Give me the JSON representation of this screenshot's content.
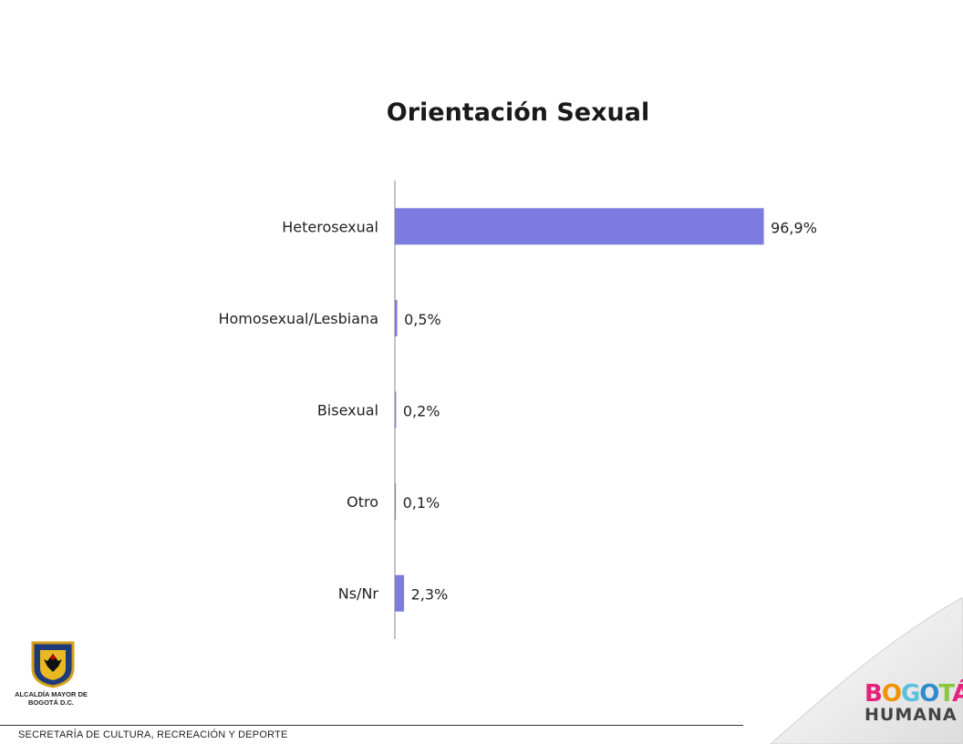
{
  "chart_data": {
    "type": "bar",
    "orientation": "horizontal",
    "title": "Orientación Sexual",
    "categories": [
      "Heterosexual",
      "Homosexual/Lesbiana",
      "Bisexual",
      "Otro",
      "Ns/Nr"
    ],
    "values": [
      96.9,
      0.5,
      0.2,
      0.1,
      2.3
    ],
    "value_labels": [
      "96,9%",
      "0,5%",
      "0,2%",
      "0,1%",
      "2,3%"
    ],
    "xlim": [
      0,
      100
    ],
    "grid": false,
    "legend": "none",
    "bar_color": "#7b7be0"
  },
  "footer": {
    "text": "SECRETARÍA DE CULTURA, RECREACIÓN Y DEPORTE"
  },
  "logos": {
    "seal_text": "ALCALDÍA MAYOR DE BOGOTÁ D.C.",
    "brand_line1": "BOGOTÁ",
    "brand_line2": "HUMANA"
  }
}
